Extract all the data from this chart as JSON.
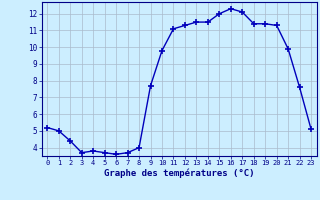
{
  "hours": [
    0,
    1,
    2,
    3,
    4,
    5,
    6,
    7,
    8,
    9,
    10,
    11,
    12,
    13,
    14,
    15,
    16,
    17,
    18,
    19,
    20,
    21,
    22,
    23
  ],
  "temps": [
    5.2,
    5.0,
    4.4,
    3.7,
    3.8,
    3.7,
    3.6,
    3.7,
    4.0,
    7.7,
    9.8,
    11.1,
    11.3,
    11.5,
    11.5,
    12.0,
    12.3,
    12.1,
    11.4,
    11.4,
    11.3,
    9.9,
    7.6,
    5.1
  ],
  "xlabel": "Graphe des températures (°C)",
  "ylim": [
    3.5,
    12.7
  ],
  "xlim": [
    -0.5,
    23.5
  ],
  "yticks": [
    4,
    5,
    6,
    7,
    8,
    9,
    10,
    11,
    12
  ],
  "xticks": [
    0,
    1,
    2,
    3,
    4,
    5,
    6,
    7,
    8,
    9,
    10,
    11,
    12,
    13,
    14,
    15,
    16,
    17,
    18,
    19,
    20,
    21,
    22,
    23
  ],
  "line_color": "#0000bb",
  "marker_color": "#0000bb",
  "bg_color": "#cceeff",
  "grid_color": "#aabbcc",
  "axis_label_color": "#000088",
  "tick_color": "#000088"
}
